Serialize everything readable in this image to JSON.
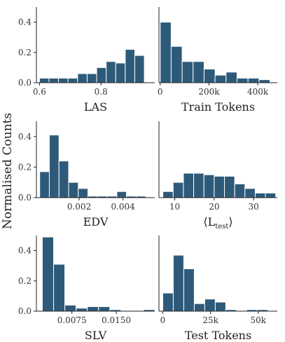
{
  "ylabel": "Normalised Counts",
  "colors": {
    "bar": "#2e5a7a",
    "bar_edge": "#ffffff",
    "axis": "#222222"
  },
  "y_ticks": [
    0,
    0.2,
    0.4
  ],
  "y_tick_labels": [
    "0.0",
    "0.2",
    "0.4"
  ],
  "chart_data": [
    {
      "type": "bar",
      "xlabel": "LAS",
      "xlim": [
        0.59,
        0.975
      ],
      "ylim": [
        0,
        0.5
      ],
      "bin_edges": [
        0.6,
        0.631,
        0.662,
        0.693,
        0.724,
        0.755,
        0.786,
        0.817,
        0.848,
        0.879,
        0.91,
        0.941
      ],
      "values": [
        0.03,
        0.03,
        0.03,
        0.03,
        0.06,
        0.06,
        0.1,
        0.14,
        0.13,
        0.22,
        0.18
      ],
      "x_ticks": [
        0.6,
        0.8
      ],
      "x_tick_labels": [
        "0.6",
        "0.8"
      ],
      "show_y_ticks": true
    },
    {
      "type": "bar",
      "xlabel": "Train Tokens",
      "xlim": [
        -5000,
        480000
      ],
      "ylim": [
        0,
        0.5
      ],
      "bin_edges": [
        0,
        45000,
        90000,
        135000,
        180000,
        225000,
        270000,
        315000,
        360000,
        405000,
        450000
      ],
      "values": [
        0.4,
        0.24,
        0.14,
        0.14,
        0.09,
        0.05,
        0.07,
        0.03,
        0.03,
        0.02
      ],
      "x_ticks": [
        0,
        200000,
        400000
      ],
      "x_tick_labels": [
        "0",
        "200k",
        "400k"
      ],
      "show_y_ticks": false
    },
    {
      "type": "bar",
      "xlabel": "EDV",
      "xlim": [
        5e-05,
        0.00545
      ],
      "ylim": [
        0,
        0.5
      ],
      "bin_edges": [
        0.0002,
        0.00064,
        0.00108,
        0.00152,
        0.00196,
        0.0024,
        0.00284,
        0.00328,
        0.00372,
        0.00416,
        0.0046,
        0.00504
      ],
      "values": [
        0.17,
        0.41,
        0.24,
        0.1,
        0.06,
        0.01,
        0.01,
        0.01,
        0.04,
        0.01,
        0.01
      ],
      "x_ticks": [
        0.002,
        0.004
      ],
      "x_tick_labels": [
        "0.002",
        "0.004"
      ],
      "show_y_ticks": true
    },
    {
      "type": "bar",
      "xlabel": "⟨L",
      "xlabel_sub": "test",
      "xlabel_close": "⟩",
      "xlim": [
        6,
        36
      ],
      "ylim": [
        0,
        0.5
      ],
      "bin_edges": [
        7,
        9.6,
        12.2,
        14.8,
        17.4,
        20,
        22.6,
        25.2,
        27.8,
        30.4,
        33,
        35.6
      ],
      "values": [
        0.04,
        0.1,
        0.16,
        0.16,
        0.15,
        0.14,
        0.14,
        0.09,
        0.06,
        0.03,
        0.03
      ],
      "x_ticks": [
        10,
        20,
        30
      ],
      "x_tick_labels": [
        "10",
        "20",
        "30"
      ],
      "show_y_ticks": false
    },
    {
      "type": "bar",
      "xlabel": "SLV",
      "xlim": [
        0.0015,
        0.0215
      ],
      "ylim": [
        0,
        0.5
      ],
      "bin_edges": [
        0.0025,
        0.0044,
        0.0063,
        0.0082,
        0.0101,
        0.012,
        0.0139,
        0.0158,
        0.0177,
        0.0196,
        0.0215
      ],
      "values": [
        0.49,
        0.31,
        0.04,
        0.02,
        0.03,
        0.03,
        0.01,
        0.0,
        0.0,
        0.01
      ],
      "x_ticks": [
        0.0075,
        0.015
      ],
      "x_tick_labels": [
        "0.0075",
        "0.0150"
      ],
      "show_y_ticks": true
    },
    {
      "type": "bar",
      "xlabel": "Test Tokens",
      "xlim": [
        -2000,
        60000
      ],
      "ylim": [
        0,
        0.5
      ],
      "bin_edges": [
        0,
        5500,
        11000,
        16500,
        22000,
        27500,
        33000,
        38500,
        44000,
        49500,
        55000
      ],
      "values": [
        0.12,
        0.37,
        0.28,
        0.05,
        0.08,
        0.06,
        0.01,
        0.0,
        0.01,
        0.01
      ],
      "x_ticks": [
        0,
        25000,
        50000
      ],
      "x_tick_labels": [
        "0",
        "25k",
        "50k"
      ],
      "show_y_ticks": false
    }
  ]
}
